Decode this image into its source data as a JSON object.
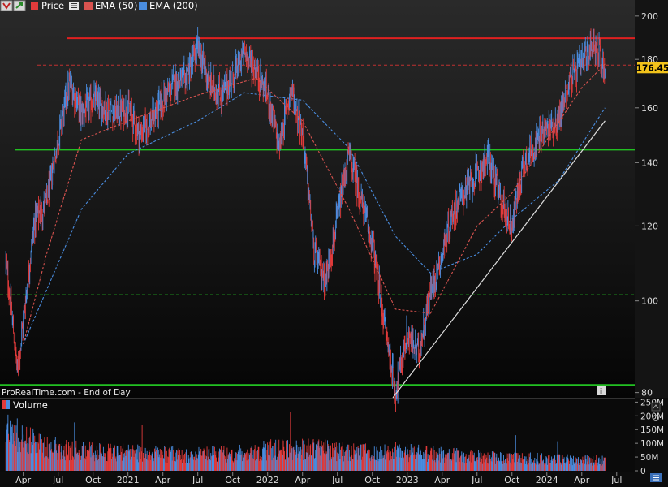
{
  "toolbar": {
    "price_label": "Price",
    "ema50_label": "EMA (50)",
    "ema200_label": "EMA (200)",
    "price_color": "#e23b3b",
    "ema50_color": "#d9534f",
    "ema200_color": "#4a8de0",
    "icons": [
      "chart-options-icon",
      "arrow-up-icon",
      "price-swatch-icon",
      "menu-icon",
      "ema50-swatch-icon",
      "ema200-swatch-icon"
    ]
  },
  "source_text": "ProRealTime.com - End of Day",
  "price_tag": "176.45",
  "volume_label": "Volume",
  "chart_data": [
    {
      "type": "candlestick",
      "title": "",
      "x_axis": {
        "tick_labels": [
          "Apr",
          "Jul",
          "Oct",
          "2021",
          "Apr",
          "Jul",
          "Oct",
          "2022",
          "Apr",
          "Jul",
          "Oct",
          "2023",
          "Apr",
          "Jul",
          "Oct",
          "2024",
          "Apr",
          "Jul"
        ],
        "range": [
          "2020-03",
          "2024-07"
        ]
      },
      "y_axis": {
        "scale": "log",
        "ticks": [
          80,
          100,
          120,
          140,
          160,
          180,
          200
        ],
        "range": [
          79,
          208
        ]
      },
      "horizontal_lines": [
        {
          "value": 189.5,
          "style": "solid",
          "color": "#e02020"
        },
        {
          "value": 177.5,
          "style": "dashed",
          "color": "#c03030"
        },
        {
          "value": 144.5,
          "style": "solid",
          "color": "#22c022"
        },
        {
          "value": 101.5,
          "style": "dashed",
          "color": "#22b022"
        },
        {
          "value": 81.5,
          "style": "solid",
          "color": "#22c022"
        }
      ],
      "trendline": {
        "from": [
          "2022-12",
          75
        ],
        "to": [
          "2024-06",
          155
        ],
        "color": "#dddddd"
      },
      "last_price": 176.45,
      "price_path": [
        [
          "2020-03",
          110
        ],
        [
          "2020-03",
          84
        ],
        [
          "2020-04",
          95
        ],
        [
          "2020-05",
          122
        ],
        [
          "2020-06",
          127
        ],
        [
          "2020-07",
          148
        ],
        [
          "2020-08",
          170
        ],
        [
          "2020-09",
          158
        ],
        [
          "2020-10",
          163
        ],
        [
          "2020-11",
          160
        ],
        [
          "2020-12",
          158
        ],
        [
          "2021-01",
          160
        ],
        [
          "2021-02",
          150
        ],
        [
          "2021-03",
          155
        ],
        [
          "2021-04",
          163
        ],
        [
          "2021-05",
          170
        ],
        [
          "2021-06",
          172
        ],
        [
          "2021-07",
          185
        ],
        [
          "2021-08",
          170
        ],
        [
          "2021-09",
          165
        ],
        [
          "2021-10",
          172
        ],
        [
          "2021-11",
          183
        ],
        [
          "2021-12",
          175
        ],
        [
          "2022-01",
          165
        ],
        [
          "2022-02",
          145
        ],
        [
          "2022-03",
          168
        ],
        [
          "2022-04",
          150
        ],
        [
          "2022-05",
          112
        ],
        [
          "2022-06",
          105
        ],
        [
          "2022-07",
          122
        ],
        [
          "2022-08",
          143
        ],
        [
          "2022-09",
          128
        ],
        [
          "2022-10",
          115
        ],
        [
          "2022-11",
          95
        ],
        [
          "2022-12",
          80
        ],
        [
          "2023-01",
          92
        ],
        [
          "2023-02",
          88
        ],
        [
          "2023-03",
          102
        ],
        [
          "2023-04",
          112
        ],
        [
          "2023-05",
          125
        ],
        [
          "2023-06",
          131
        ],
        [
          "2023-07",
          136
        ],
        [
          "2023-08",
          142
        ],
        [
          "2023-09",
          128
        ],
        [
          "2023-10",
          120
        ],
        [
          "2023-11",
          140
        ],
        [
          "2023-12",
          147
        ],
        [
          "2024-01",
          152
        ],
        [
          "2024-02",
          155
        ],
        [
          "2024-03",
          172
        ],
        [
          "2024-04",
          178
        ],
        [
          "2024-05",
          188
        ],
        [
          "2024-06",
          176.45
        ]
      ],
      "series": [
        {
          "name": "EMA (50)",
          "style": "dashed",
          "color": "#d9534f",
          "points": [
            [
              "2020-04",
              90
            ],
            [
              "2020-06",
              112
            ],
            [
              "2020-09",
              148
            ],
            [
              "2021-01",
              155
            ],
            [
              "2021-07",
              165
            ],
            [
              "2021-12",
              172
            ],
            [
              "2022-04",
              155
            ],
            [
              "2022-08",
              125
            ],
            [
              "2022-12",
              98
            ],
            [
              "2023-03",
              97
            ],
            [
              "2023-07",
              120
            ],
            [
              "2023-10",
              130
            ],
            [
              "2024-01",
              148
            ],
            [
              "2024-04",
              168
            ],
            [
              "2024-06",
              178
            ]
          ]
        },
        {
          "name": "EMA (200)",
          "style": "dashed",
          "color": "#4a8de0",
          "points": [
            [
              "2020-04",
              90
            ],
            [
              "2020-09",
              125
            ],
            [
              "2021-01",
              143
            ],
            [
              "2021-07",
              155
            ],
            [
              "2021-11",
              166
            ],
            [
              "2022-04",
              163
            ],
            [
              "2022-08",
              145
            ],
            [
              "2022-12",
              117
            ],
            [
              "2023-03",
              107
            ],
            [
              "2023-07",
              112
            ],
            [
              "2023-10",
              122
            ],
            [
              "2024-02",
              134
            ],
            [
              "2024-06",
              160
            ]
          ]
        }
      ]
    },
    {
      "type": "bar",
      "title": "Volume",
      "y_axis": {
        "ticks": [
          "250M",
          "200M",
          "150M",
          "100M",
          "50M",
          "0"
        ],
        "range": [
          0,
          260
        ]
      },
      "profile": [
        [
          "2020-03",
          190
        ],
        [
          "2020-06",
          115
        ],
        [
          "2020-09",
          100
        ],
        [
          "2021-01",
          90
        ],
        [
          "2021-06",
          80
        ],
        [
          "2021-10",
          85
        ],
        [
          "2022-01",
          105
        ],
        [
          "2022-05",
          110
        ],
        [
          "2022-09",
          90
        ],
        [
          "2022-12",
          95
        ],
        [
          "2023-04",
          80
        ],
        [
          "2023-08",
          65
        ],
        [
          "2023-12",
          60
        ],
        [
          "2024-04",
          55
        ],
        [
          "2024-06",
          50
        ]
      ]
    }
  ]
}
